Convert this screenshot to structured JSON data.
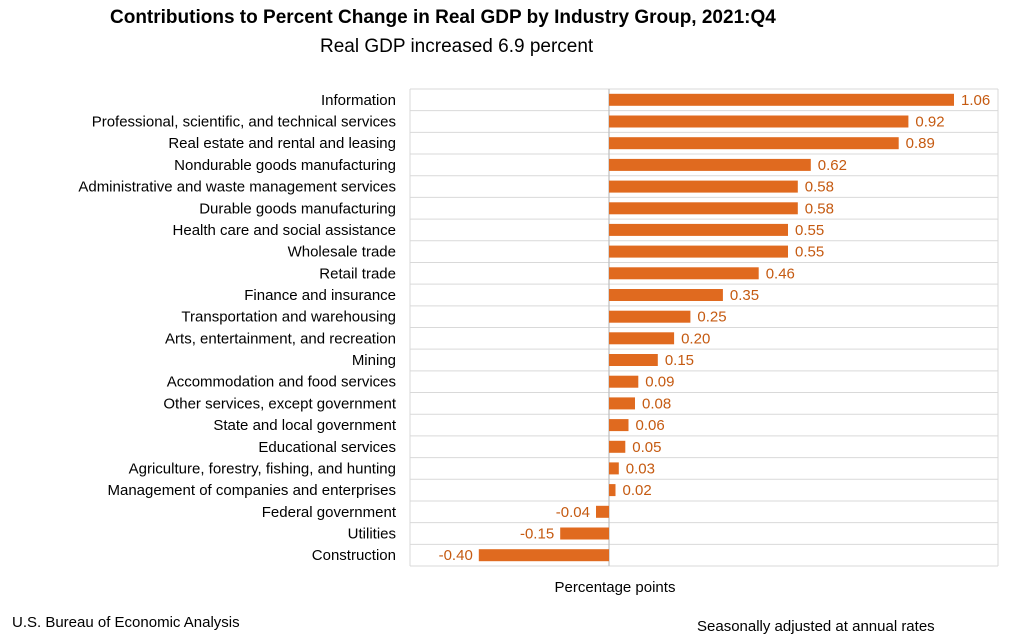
{
  "header": {
    "title": "Contributions to Percent Change in Real GDP by Industry Group, 2021:Q4",
    "subtitle": "Real GDP increased 6.9 percent"
  },
  "footer": {
    "source": "U.S. Bureau of Economic Analysis",
    "note": "Seasonally adjusted at annual rates"
  },
  "chart_data": {
    "type": "bar",
    "orientation": "horizontal",
    "title": "Contributions to Percent Change in Real GDP by Industry Group, 2021:Q4",
    "subtitle": "Real GDP increased 6.9 percent",
    "xlabel": "Percentage points",
    "ylabel": "",
    "bar_color": "#E06A1F",
    "label_color": "#C55A11",
    "grid": "vertical",
    "legend": "none",
    "xlim": [
      -0.6,
      1.1
    ],
    "categories": [
      "Information",
      "Professional, scientific, and technical services",
      "Real estate and rental and leasing",
      "Nondurable goods manufacturing",
      "Administrative and waste management services",
      "Durable goods manufacturing",
      "Health care and social assistance",
      "Wholesale trade",
      "Retail trade",
      "Finance and insurance",
      "Transportation and warehousing",
      "Arts, entertainment, and recreation",
      "Mining",
      "Accommodation and food services",
      "Other services, except government",
      "State and local government",
      "Educational services",
      "Agriculture, forestry, fishing, and hunting",
      "Management of companies and enterprises",
      "Federal government",
      "Utilities",
      "Construction"
    ],
    "values": [
      1.06,
      0.92,
      0.89,
      0.62,
      0.58,
      0.58,
      0.55,
      0.55,
      0.46,
      0.35,
      0.25,
      0.2,
      0.15,
      0.09,
      0.08,
      0.06,
      0.05,
      0.03,
      0.02,
      -0.04,
      -0.15,
      -0.4
    ],
    "value_labels": [
      "1.06",
      "0.92",
      "0.89",
      "0.62",
      "0.58",
      "0.58",
      "0.55",
      "0.55",
      "0.46",
      "0.35",
      "0.25",
      "0.20",
      "0.15",
      "0.09",
      "0.08",
      "0.06",
      "0.05",
      "0.03",
      "0.02",
      "-0.04",
      "-0.15",
      "-0.40"
    ]
  }
}
